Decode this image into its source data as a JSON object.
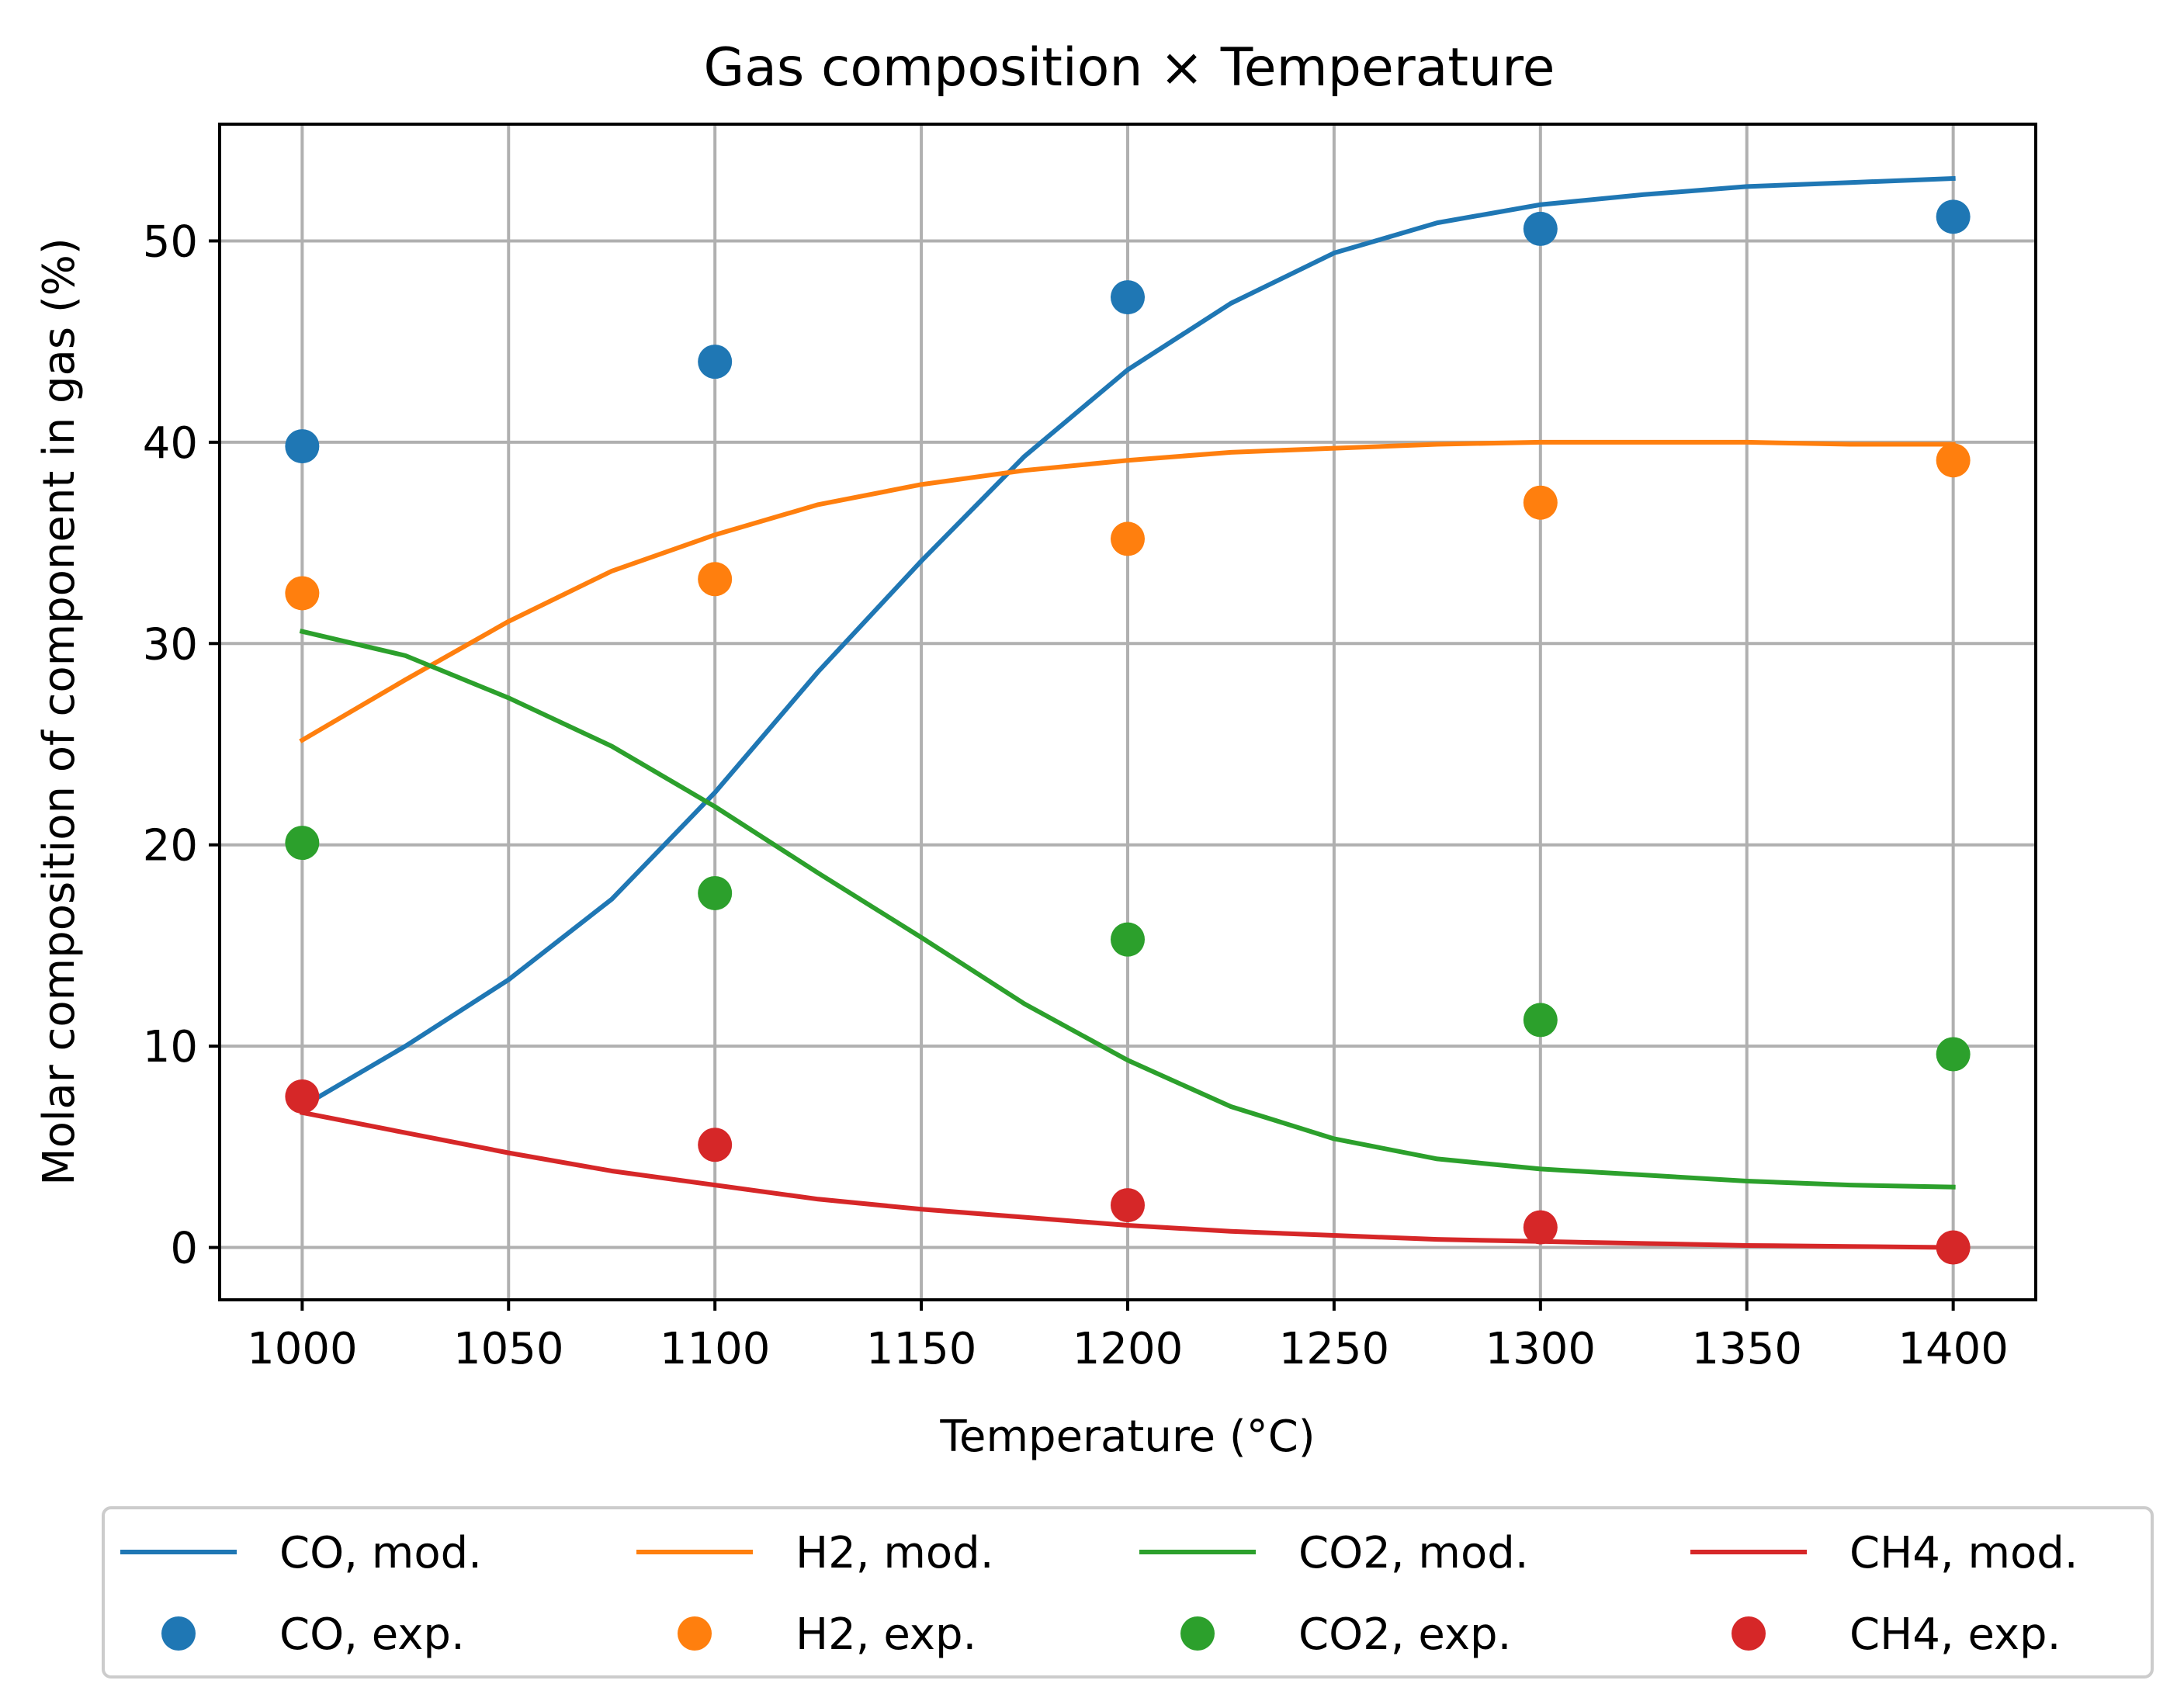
{
  "chart_data": {
    "type": "line",
    "title": "Gas composition × Temperature",
    "xlabel": "Temperature (°C)",
    "ylabel": "Molar composition of component in gas (%)",
    "xlim": [
      980,
      1420
    ],
    "ylim": [
      -2.6,
      55.8
    ],
    "xticks": [
      1000,
      1050,
      1100,
      1150,
      1200,
      1250,
      1300,
      1350,
      1400
    ],
    "yticks": [
      0,
      10,
      20,
      30,
      40,
      50
    ],
    "grid": true,
    "legend_position": "bottom",
    "colors": {
      "CO": "#1f77b4",
      "H2": "#ff7f0e",
      "CO2": "#2ca02c",
      "CH4": "#d62728"
    },
    "model_x": [
      1000,
      1025,
      1050,
      1075,
      1100,
      1125,
      1150,
      1175,
      1200,
      1225,
      1250,
      1275,
      1300,
      1325,
      1350,
      1375,
      1400
    ],
    "series": [
      {
        "name": "CO, mod.",
        "kind": "line",
        "color": "#1f77b4",
        "values": [
          7.0,
          10.0,
          13.3,
          17.3,
          22.6,
          28.6,
          34.1,
          39.3,
          43.6,
          46.9,
          49.4,
          50.9,
          51.8,
          52.3,
          52.7,
          52.9,
          53.1
        ]
      },
      {
        "name": "H2, mod.",
        "kind": "line",
        "color": "#ff7f0e",
        "values": [
          25.2,
          28.2,
          31.1,
          33.6,
          35.4,
          36.9,
          37.9,
          38.6,
          39.1,
          39.5,
          39.7,
          39.9,
          40.0,
          40.0,
          40.0,
          39.9,
          39.9
        ]
      },
      {
        "name": "CO2, mod.",
        "kind": "line",
        "color": "#2ca02c",
        "values": [
          30.6,
          29.4,
          27.3,
          24.9,
          21.9,
          18.6,
          15.4,
          12.1,
          9.3,
          7.0,
          5.4,
          4.4,
          3.9,
          3.6,
          3.3,
          3.1,
          3.0
        ]
      },
      {
        "name": "CH4, mod.",
        "kind": "line",
        "color": "#d62728",
        "values": [
          6.7,
          5.7,
          4.7,
          3.8,
          3.1,
          2.4,
          1.9,
          1.5,
          1.1,
          0.8,
          0.6,
          0.4,
          0.3,
          0.2,
          0.1,
          0.05,
          0.0
        ]
      },
      {
        "name": "CO, exp.",
        "kind": "scatter",
        "color": "#1f77b4",
        "x": [
          1000,
          1100,
          1200,
          1300,
          1400
        ],
        "values": [
          39.8,
          44.0,
          47.2,
          50.6,
          51.2
        ]
      },
      {
        "name": "H2, exp.",
        "kind": "scatter",
        "color": "#ff7f0e",
        "x": [
          1000,
          1100,
          1200,
          1300,
          1400
        ],
        "values": [
          32.5,
          33.2,
          35.2,
          37.0,
          39.1
        ]
      },
      {
        "name": "CO2, exp.",
        "kind": "scatter",
        "color": "#2ca02c",
        "x": [
          1000,
          1100,
          1200,
          1300,
          1400
        ],
        "values": [
          20.1,
          17.6,
          15.3,
          11.3,
          9.6
        ]
      },
      {
        "name": "CH4, exp.",
        "kind": "scatter",
        "color": "#d62728",
        "x": [
          1000,
          1100,
          1200,
          1300,
          1400
        ],
        "values": [
          7.5,
          5.1,
          2.1,
          1.0,
          0.0
        ]
      }
    ],
    "legend": {
      "rows": [
        [
          "CO, mod.",
          "H2, mod.",
          "CO2, mod.",
          "CH4, mod."
        ],
        [
          "CO, exp.",
          "H2, exp.",
          "CO2, exp.",
          "CH4, exp."
        ]
      ]
    }
  }
}
